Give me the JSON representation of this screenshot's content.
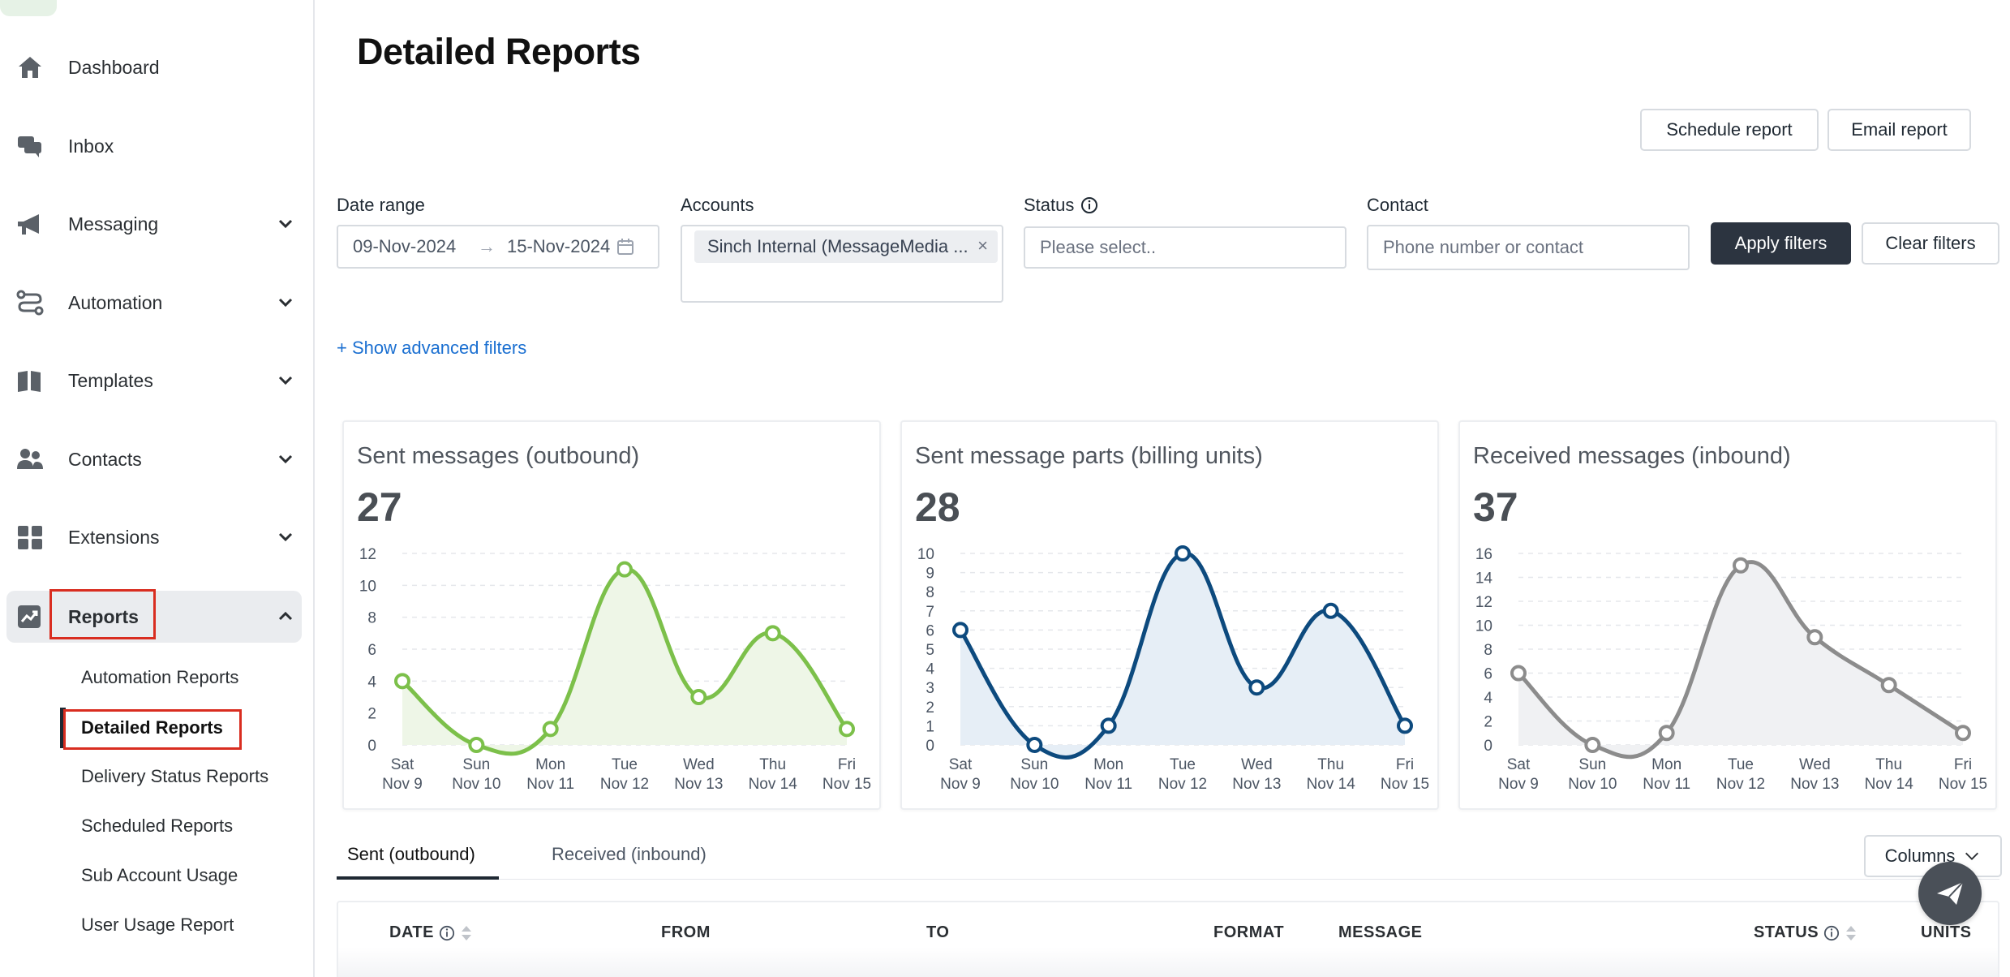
{
  "sidebar": {
    "items": [
      {
        "label": "Dashboard",
        "icon": "home-icon"
      },
      {
        "label": "Inbox",
        "icon": "chat-icon"
      },
      {
        "label": "Messaging",
        "icon": "megaphone-icon"
      },
      {
        "label": "Automation",
        "icon": "route-icon"
      },
      {
        "label": "Templates",
        "icon": "book-icon"
      },
      {
        "label": "Contacts",
        "icon": "people-icon"
      },
      {
        "label": "Extensions",
        "icon": "grid-icon"
      },
      {
        "label": "Reports",
        "icon": "trend-chart-icon"
      }
    ],
    "sub_items": [
      {
        "label": "Automation Reports"
      },
      {
        "label": "Detailed Reports"
      },
      {
        "label": "Delivery Status Reports"
      },
      {
        "label": "Scheduled Reports"
      },
      {
        "label": "Sub Account Usage"
      },
      {
        "label": "User Usage Report"
      }
    ]
  },
  "page": {
    "title": "Detailed Reports",
    "schedule_button": "Schedule report",
    "email_button": "Email report"
  },
  "filters": {
    "date_range_label": "Date range",
    "date_from": "09-Nov-2024",
    "date_to": "15-Nov-2024",
    "accounts_label": "Accounts",
    "account_tag": "Sinch Internal (MessageMedia ...",
    "status_label": "Status",
    "status_placeholder": "Please select..",
    "contact_label": "Contact",
    "contact_placeholder": "Phone number or contact",
    "apply_button": "Apply filters",
    "clear_button": "Clear filters",
    "advanced_link": "+ Show advanced filters"
  },
  "chart_data": [
    {
      "type": "area",
      "title": "Sent messages (outbound)",
      "total": "27",
      "color": "#7cc04a",
      "fill": "#eef6e7",
      "categories": [
        "Sat Nov 9",
        "Sun Nov 10",
        "Mon Nov 11",
        "Tue Nov 12",
        "Wed Nov 13",
        "Thu Nov 14",
        "Fri Nov 15"
      ],
      "x_top": [
        "Sat",
        "Sun",
        "Mon",
        "Tue",
        "Wed",
        "Thu",
        "Fri"
      ],
      "x_bottom": [
        "Nov 9",
        "Nov 10",
        "Nov 11",
        "Nov 12",
        "Nov 13",
        "Nov 14",
        "Nov 15"
      ],
      "values": [
        4,
        0,
        1,
        11,
        3,
        7,
        1
      ],
      "ylim": [
        0,
        12
      ],
      "yticks": [
        0,
        2,
        4,
        6,
        8,
        10,
        12
      ],
      "grid": true
    },
    {
      "type": "area",
      "title": "Sent message parts (billing units)",
      "total": "28",
      "color": "#0d4a7e",
      "fill": "#e6eef6",
      "categories": [
        "Sat Nov 9",
        "Sun Nov 10",
        "Mon Nov 11",
        "Tue Nov 12",
        "Wed Nov 13",
        "Thu Nov 14",
        "Fri Nov 15"
      ],
      "x_top": [
        "Sat",
        "Sun",
        "Mon",
        "Tue",
        "Wed",
        "Thu",
        "Fri"
      ],
      "x_bottom": [
        "Nov 9",
        "Nov 10",
        "Nov 11",
        "Nov 12",
        "Nov 13",
        "Nov 14",
        "Nov 15"
      ],
      "values": [
        6,
        0,
        1,
        10,
        3,
        7,
        1
      ],
      "ylim": [
        0,
        10
      ],
      "yticks": [
        0,
        1,
        2,
        3,
        4,
        5,
        6,
        7,
        8,
        9,
        10
      ],
      "grid": true
    },
    {
      "type": "area",
      "title": "Received messages (inbound)",
      "total": "37",
      "color": "#8c8c8c",
      "fill": "#f0f1f3",
      "categories": [
        "Sat Nov 9",
        "Sun Nov 10",
        "Mon Nov 11",
        "Tue Nov 12",
        "Wed Nov 13",
        "Thu Nov 14",
        "Fri Nov 15"
      ],
      "x_top": [
        "Sat",
        "Sun",
        "Mon",
        "Tue",
        "Wed",
        "Thu",
        "Fri"
      ],
      "x_bottom": [
        "Nov 9",
        "Nov 10",
        "Nov 11",
        "Nov 12",
        "Nov 13",
        "Nov 14",
        "Nov 15"
      ],
      "values": [
        6,
        0,
        1,
        15,
        9,
        5,
        1
      ],
      "ylim": [
        0,
        16
      ],
      "yticks": [
        0,
        2,
        4,
        6,
        8,
        10,
        12,
        14,
        16
      ],
      "grid": true
    }
  ],
  "tabs": {
    "sent": "Sent (outbound)",
    "received": "Received (inbound)",
    "columns_button": "Columns"
  },
  "table": {
    "headers": {
      "date": "DATE",
      "from": "FROM",
      "to": "TO",
      "format": "FORMAT",
      "message": "MESSAGE",
      "status": "STATUS",
      "units": "UNITS"
    }
  }
}
